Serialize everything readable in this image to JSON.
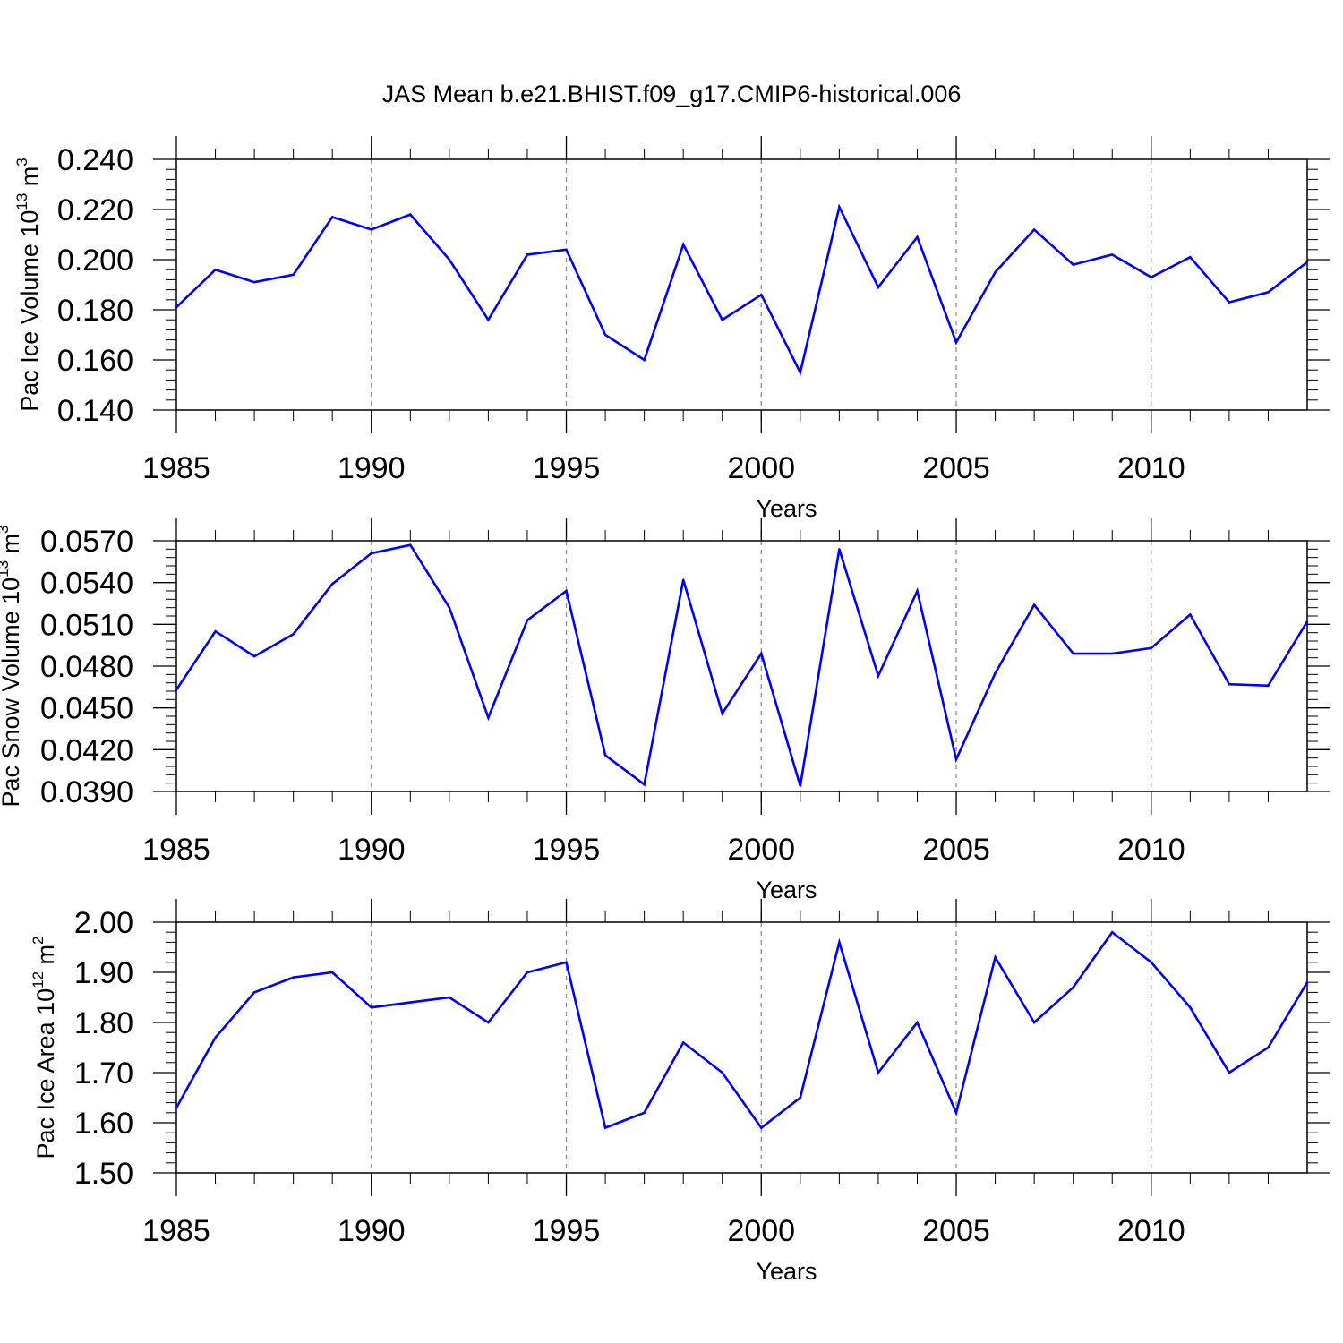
{
  "title": "JAS Mean b.e21.BHIST.f09_g17.CMIP6-historical.006",
  "line_color": "#0000ff",
  "chart_data": [
    {
      "type": "line",
      "ylabel_main": "Pac Ice Volume 10",
      "ylabel_exp": "13",
      "ylabel_unit": " m",
      "ylabel_unit_exp": "3",
      "xlabel": "Years",
      "xlim": [
        1985,
        2014
      ],
      "ylim": [
        0.14,
        0.24
      ],
      "yticks": [
        "0.140",
        "0.160",
        "0.180",
        "0.200",
        "0.220",
        "0.240"
      ],
      "xticks": [
        "1985",
        "1990",
        "1995",
        "2000",
        "2005",
        "2010"
      ],
      "x": [
        1985,
        1986,
        1987,
        1988,
        1989,
        1990,
        1991,
        1992,
        1993,
        1994,
        1995,
        1996,
        1997,
        1998,
        1999,
        2000,
        2001,
        2002,
        2003,
        2004,
        2005,
        2006,
        2007,
        2008,
        2009,
        2010,
        2011,
        2012,
        2013,
        2014
      ],
      "values": [
        0.181,
        0.196,
        0.191,
        0.194,
        0.217,
        0.212,
        0.218,
        0.2,
        0.176,
        0.202,
        0.204,
        0.17,
        0.16,
        0.206,
        0.176,
        0.186,
        0.155,
        0.221,
        0.189,
        0.209,
        0.167,
        0.195,
        0.212,
        0.198,
        0.202,
        0.193,
        0.201,
        0.183,
        0.187,
        0.199
      ]
    },
    {
      "type": "line",
      "ylabel_main": "Pac Snow Volume 10",
      "ylabel_exp": "13",
      "ylabel_unit": " m",
      "ylabel_unit_exp": "3",
      "xlabel": "Years",
      "xlim": [
        1985,
        2014
      ],
      "ylim": [
        0.039,
        0.057
      ],
      "yticks": [
        "0.0390",
        "0.0420",
        "0.0450",
        "0.0480",
        "0.0510",
        "0.0540",
        "0.0570"
      ],
      "xticks": [
        "1985",
        "1990",
        "1995",
        "2000",
        "2005",
        "2010"
      ],
      "x": [
        1985,
        1986,
        1987,
        1988,
        1989,
        1990,
        1991,
        1992,
        1993,
        1994,
        1995,
        1996,
        1997,
        1998,
        1999,
        2000,
        2001,
        2002,
        2003,
        2004,
        2005,
        2006,
        2007,
        2008,
        2009,
        2010,
        2011,
        2012,
        2013,
        2014
      ],
      "values": [
        0.0463,
        0.0505,
        0.0487,
        0.0503,
        0.0539,
        0.0561,
        0.0567,
        0.0522,
        0.0443,
        0.0513,
        0.0534,
        0.0416,
        0.0395,
        0.0542,
        0.0446,
        0.0489,
        0.0394,
        0.0564,
        0.0473,
        0.0534,
        0.0413,
        0.0475,
        0.0524,
        0.0489,
        0.0489,
        0.0493,
        0.0517,
        0.0467,
        0.0466,
        0.0512
      ]
    },
    {
      "type": "line",
      "ylabel_main": "Pac Ice Area 10",
      "ylabel_exp": "12",
      "ylabel_unit": " m",
      "ylabel_unit_exp": "2",
      "xlabel": "Years",
      "xlim": [
        1985,
        2014
      ],
      "ylim": [
        1.5,
        2.0
      ],
      "yticks": [
        "1.50",
        "1.60",
        "1.70",
        "1.80",
        "1.90",
        "2.00"
      ],
      "xticks": [
        "1985",
        "1990",
        "1995",
        "2000",
        "2005",
        "2010"
      ],
      "x": [
        1985,
        1986,
        1987,
        1988,
        1989,
        1990,
        1991,
        1992,
        1993,
        1994,
        1995,
        1996,
        1997,
        1998,
        1999,
        2000,
        2001,
        2002,
        2003,
        2004,
        2005,
        2006,
        2007,
        2008,
        2009,
        2010,
        2011,
        2012,
        2013,
        2014
      ],
      "values": [
        1.63,
        1.77,
        1.86,
        1.89,
        1.9,
        1.83,
        1.84,
        1.85,
        1.8,
        1.9,
        1.92,
        1.59,
        1.62,
        1.76,
        1.7,
        1.59,
        1.65,
        1.96,
        1.7,
        1.8,
        1.62,
        1.93,
        1.8,
        1.87,
        1.98,
        1.92,
        1.83,
        1.7,
        1.75,
        1.88
      ]
    }
  ]
}
